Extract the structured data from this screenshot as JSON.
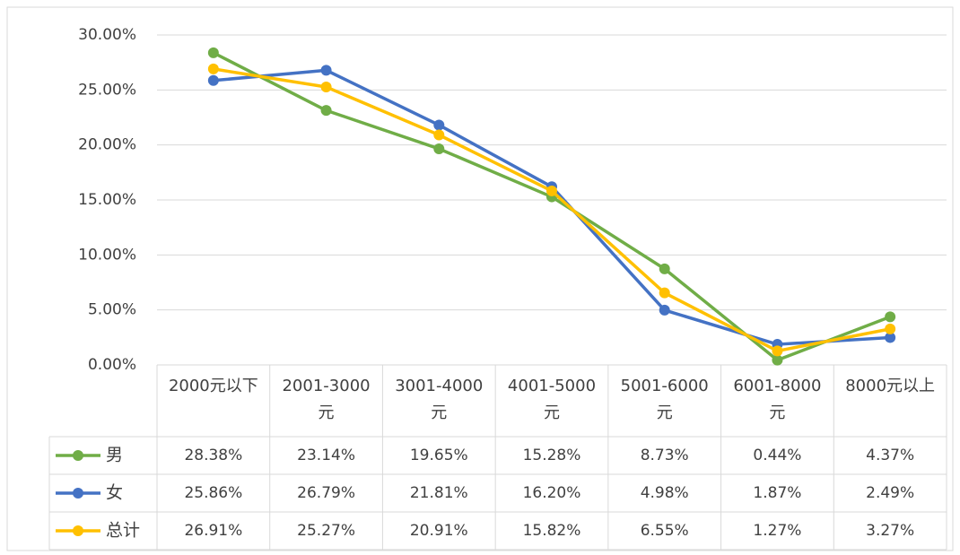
{
  "chart_data": {
    "type": "line",
    "categories": [
      "2000元以下",
      "2001-3000元",
      "3001-4000元",
      "4001-5000元",
      "5001-6000元",
      "6001-8000元",
      "8000元以上"
    ],
    "series": [
      {
        "name": "男",
        "color": "#70ad47",
        "values": [
          28.38,
          23.14,
          19.65,
          15.28,
          8.73,
          0.44,
          4.37
        ],
        "value_labels": [
          "28.38%",
          "23.14%",
          "19.65%",
          "15.28%",
          "8.73%",
          "0.44%",
          "4.37%"
        ]
      },
      {
        "name": "女",
        "color": "#4472c4",
        "values": [
          25.86,
          26.79,
          21.81,
          16.2,
          4.98,
          1.87,
          2.49
        ],
        "value_labels": [
          "25.86%",
          "26.79%",
          "21.81%",
          "16.20%",
          "4.98%",
          "1.87%",
          "2.49%"
        ]
      },
      {
        "name": "总计",
        "color": "#ffc000",
        "values": [
          26.91,
          25.27,
          20.91,
          15.82,
          6.55,
          1.27,
          3.27
        ],
        "value_labels": [
          "26.91%",
          "25.27%",
          "20.91%",
          "15.82%",
          "6.55%",
          "1.27%",
          "3.27%"
        ]
      }
    ],
    "ylim": [
      0,
      30
    ],
    "yticks": [
      {
        "value": 0,
        "label": "0.00%"
      },
      {
        "value": 5,
        "label": "5.00%"
      },
      {
        "value": 10,
        "label": "10.00%"
      },
      {
        "value": 15,
        "label": "15.00%"
      },
      {
        "value": 20,
        "label": "20.00%"
      },
      {
        "value": 25,
        "label": "25.00%"
      },
      {
        "value": 30,
        "label": "30.00%"
      }
    ],
    "grid": true
  }
}
